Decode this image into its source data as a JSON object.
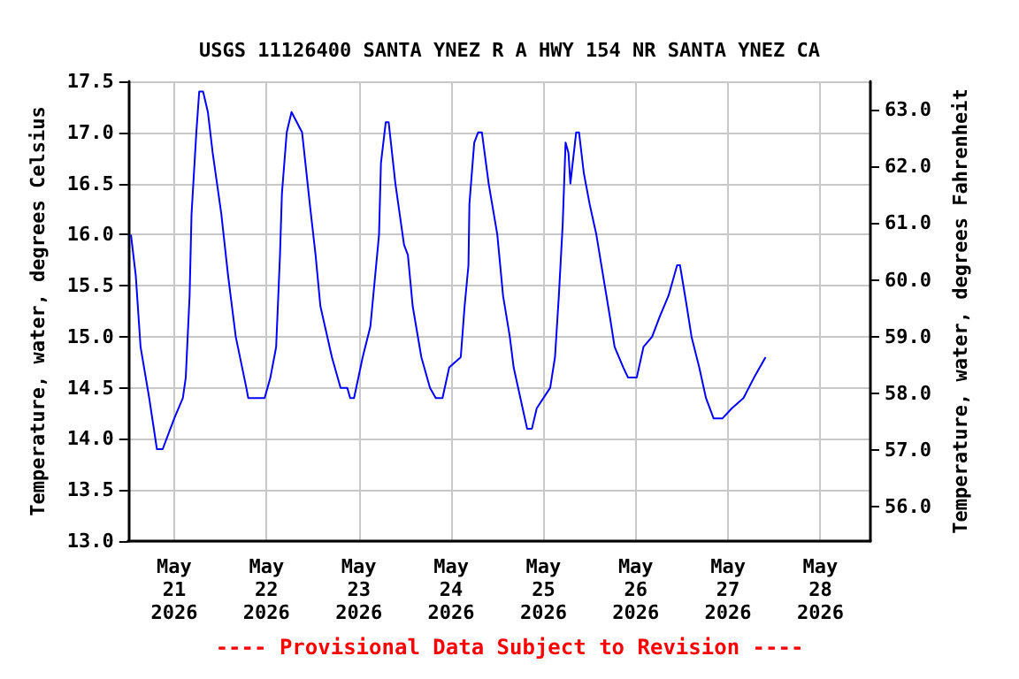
{
  "chart_data": {
    "type": "line",
    "title": "USGS 11126400 SANTA YNEZ R A HWY 154 NR SANTA YNEZ CA",
    "ylabel": "Temperature, water, degrees Celsius",
    "y2label": "Temperature, water, degrees Fahrenheit",
    "annotations": [
      "---- Provisional Data Subject to Revision ----"
    ],
    "xlim": [
      "2026-05-20T12:00",
      "2026-05-28T13:00"
    ],
    "xticks": [
      {
        "value": "2026-05-21",
        "label": "May\n21\n2026"
      },
      {
        "value": "2026-05-22",
        "label": "May\n22\n2026"
      },
      {
        "value": "2026-05-23",
        "label": "May\n23\n2026"
      },
      {
        "value": "2026-05-24",
        "label": "May\n24\n2026"
      },
      {
        "value": "2026-05-25",
        "label": "May\n25\n2026"
      },
      {
        "value": "2026-05-26",
        "label": "May\n26\n2026"
      },
      {
        "value": "2026-05-27",
        "label": "May\n27\n2026"
      },
      {
        "value": "2026-05-28",
        "label": "May\n28\n2026"
      }
    ],
    "ylim": [
      13.0,
      17.5
    ],
    "yticks": [
      {
        "value": 13,
        "label": "13.0"
      },
      {
        "value": 13.5,
        "label": "13.5"
      },
      {
        "value": 14,
        "label": "14.0"
      },
      {
        "value": 14.5,
        "label": "14.5"
      },
      {
        "value": 15,
        "label": "15.0"
      },
      {
        "value": 15.5,
        "label": "15.5"
      },
      {
        "value": 16,
        "label": "16.0"
      },
      {
        "value": 16.5,
        "label": "16.5"
      },
      {
        "value": 17,
        "label": "17.0"
      },
      {
        "value": 17.5,
        "label": "17.5"
      }
    ],
    "y2lim": [
      55.4,
      63.5
    ],
    "y2ticks": [
      {
        "value": 56,
        "label": "56.0"
      },
      {
        "value": 57,
        "label": "57.0"
      },
      {
        "value": 58,
        "label": "58.0"
      },
      {
        "value": 59,
        "label": "59.0"
      },
      {
        "value": 60,
        "label": "60.0"
      },
      {
        "value": 61,
        "label": "61.0"
      },
      {
        "value": 62,
        "label": "62.0"
      },
      {
        "value": 63,
        "label": "63.0"
      }
    ],
    "grid": true,
    "marker": "none",
    "line_style": "solid",
    "series": [
      {
        "color": "#0000ff",
        "x": [
          "2026-05-20T12:45",
          "2026-05-20T14:00",
          "2026-05-20T15:15",
          "2026-05-20T17:30",
          "2026-05-20T19:30",
          "2026-05-20T21:00",
          "2026-05-21T00:00",
          "2026-05-21T02:15",
          "2026-05-21T03:00",
          "2026-05-21T04:00",
          "2026-05-21T04:30",
          "2026-05-21T05:45",
          "2026-05-21T06:30",
          "2026-05-21T07:30",
          "2026-05-21T08:45",
          "2026-05-21T10:00",
          "2026-05-21T12:15",
          "2026-05-21T14:00",
          "2026-05-21T16:00",
          "2026-05-21T18:45",
          "2026-05-21T19:15",
          "2026-05-21T23:30",
          "2026-05-22T01:00",
          "2026-05-22T02:30",
          "2026-05-22T03:30",
          "2026-05-22T04:00",
          "2026-05-22T05:15",
          "2026-05-22T06:30",
          "2026-05-22T09:15",
          "2026-05-22T11:15",
          "2026-05-22T12:45",
          "2026-05-22T14:00",
          "2026-05-22T17:00",
          "2026-05-22T19:15",
          "2026-05-22T21:00",
          "2026-05-22T21:45",
          "2026-05-22T22:45",
          "2026-05-23T01:00",
          "2026-05-23T03:00",
          "2026-05-23T05:15",
          "2026-05-23T05:45",
          "2026-05-23T07:00",
          "2026-05-23T07:45",
          "2026-05-23T09:30",
          "2026-05-23T11:45",
          "2026-05-23T12:45",
          "2026-05-23T14:00",
          "2026-05-23T16:15",
          "2026-05-23T18:30",
          "2026-05-23T20:00",
          "2026-05-23T21:45",
          "2026-05-23T23:30",
          "2026-05-24T02:30",
          "2026-05-24T03:30",
          "2026-05-24T04:30",
          "2026-05-24T04:45",
          "2026-05-24T06:00",
          "2026-05-24T07:00",
          "2026-05-24T08:00",
          "2026-05-24T09:45",
          "2026-05-24T12:00",
          "2026-05-24T13:30",
          "2026-05-24T15:15",
          "2026-05-24T16:15",
          "2026-05-24T18:00",
          "2026-05-24T19:45",
          "2026-05-24T21:00",
          "2026-05-24T22:15",
          "2026-05-25T01:45",
          "2026-05-25T03:00",
          "2026-05-25T04:00",
          "2026-05-25T05:00",
          "2026-05-25T05:45",
          "2026-05-25T06:30",
          "2026-05-25T07:00",
          "2026-05-25T08:30",
          "2026-05-25T09:15",
          "2026-05-25T10:30",
          "2026-05-25T12:00",
          "2026-05-25T13:45",
          "2026-05-25T15:30",
          "2026-05-25T17:15",
          "2026-05-25T18:30",
          "2026-05-25T20:45",
          "2026-05-25T22:00",
          "2026-05-26T00:15",
          "2026-05-26T02:00",
          "2026-05-26T04:15",
          "2026-05-26T06:15",
          "2026-05-26T08:30",
          "2026-05-26T10:45",
          "2026-05-26T11:30",
          "2026-05-26T13:15",
          "2026-05-26T14:30",
          "2026-05-26T16:30",
          "2026-05-26T18:15",
          "2026-05-26T20:15",
          "2026-05-26T22:30",
          "2026-05-27T01:00",
          "2026-05-27T04:00",
          "2026-05-27T06:45",
          "2026-05-27T09:45"
        ],
        "values": [
          16.0,
          15.6,
          14.9,
          14.4,
          13.9,
          13.9,
          14.2,
          14.4,
          14.6,
          15.4,
          16.2,
          17.0,
          17.4,
          17.4,
          17.2,
          16.8,
          16.2,
          15.6,
          15.0,
          14.5,
          14.4,
          14.4,
          14.6,
          14.9,
          15.8,
          16.4,
          17.0,
          17.2,
          17.0,
          16.3,
          15.8,
          15.3,
          14.8,
          14.5,
          14.5,
          14.4,
          14.4,
          14.8,
          15.1,
          16.0,
          16.7,
          17.1,
          17.1,
          16.5,
          15.9,
          15.8,
          15.3,
          14.8,
          14.5,
          14.4,
          14.4,
          14.7,
          14.8,
          15.3,
          15.7,
          16.3,
          16.9,
          17.0,
          17.0,
          16.5,
          16.0,
          15.4,
          15.0,
          14.7,
          14.4,
          14.1,
          14.1,
          14.3,
          14.5,
          14.8,
          15.4,
          16.1,
          16.9,
          16.8,
          16.5,
          17.0,
          17.0,
          16.6,
          16.3,
          16.0,
          15.6,
          15.2,
          14.9,
          14.7,
          14.6,
          14.6,
          14.9,
          15.0,
          15.2,
          15.4,
          15.7,
          15.7,
          15.3,
          15.0,
          14.7,
          14.4,
          14.2,
          14.2,
          14.3,
          14.4,
          14.6,
          14.8
        ]
      }
    ]
  }
}
